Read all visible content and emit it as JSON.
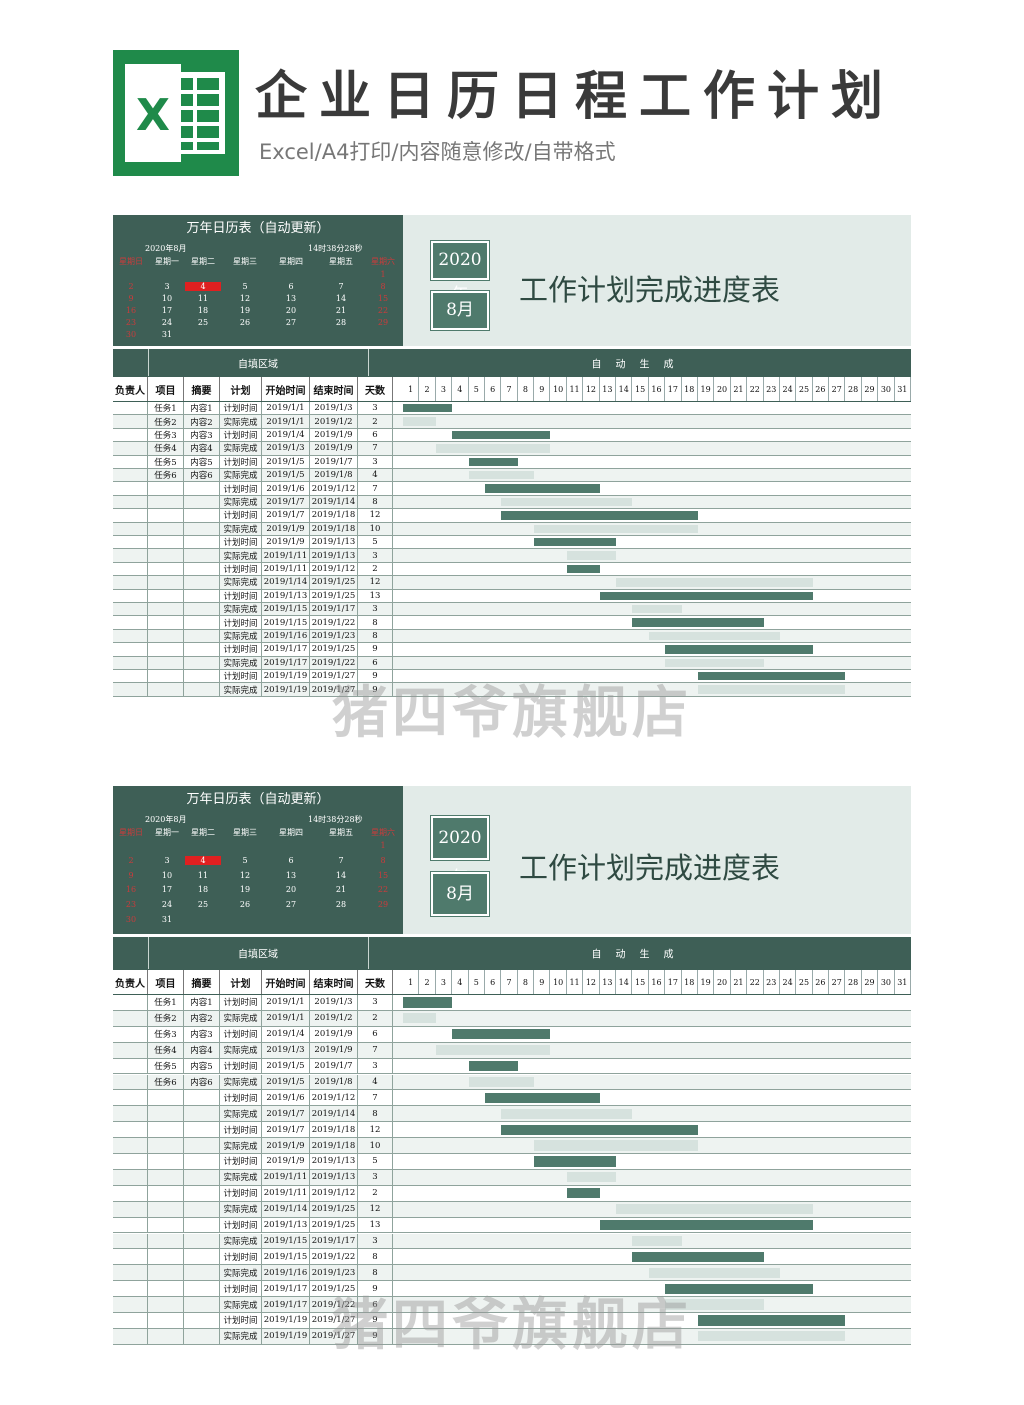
{
  "header": {
    "logo_letter": "X",
    "title": "企业日历日程工作计划",
    "subtitle": "Excel/A4打印/内容随意修改/自带格式"
  },
  "calendar": {
    "title": "万年日历表（自动更新）",
    "month_label": "2020年8月",
    "time_label": "14时38分28秒",
    "weekdays": [
      "星期日",
      "星期一",
      "星期二",
      "星期三",
      "星期四",
      "星期五",
      "星期六"
    ],
    "weeks": [
      [
        "",
        "",
        "",
        "",
        "",
        "",
        "1"
      ],
      [
        "2",
        "3",
        "4",
        "5",
        "6",
        "7",
        "8"
      ],
      [
        "9",
        "10",
        "11",
        "12",
        "13",
        "14",
        "15"
      ],
      [
        "16",
        "17",
        "18",
        "19",
        "20",
        "21",
        "22"
      ],
      [
        "23",
        "24",
        "25",
        "26",
        "27",
        "28",
        "29"
      ],
      [
        "30",
        "31",
        "",
        "",
        "",
        "",
        ""
      ]
    ],
    "today": "4"
  },
  "banner": {
    "year": "2020年",
    "month": "8月",
    "title": "工作计划完成进度表"
  },
  "band": {
    "left": "自填区域",
    "right": "自动生成"
  },
  "columns": [
    "负责人",
    "项目",
    "摘要",
    "计划",
    "开始时间",
    "结束时间",
    "天数"
  ],
  "days": [
    "1",
    "2",
    "3",
    "4",
    "5",
    "6",
    "7",
    "8",
    "9",
    "10",
    "11",
    "12",
    "13",
    "14",
    "15",
    "16",
    "17",
    "18",
    "19",
    "20",
    "21",
    "22",
    "23",
    "24",
    "25",
    "26",
    "27",
    "28",
    "29",
    "30",
    "31"
  ],
  "rows": [
    {
      "owner": "",
      "project": "任务1",
      "summary": "内容1",
      "plan": "计划时间",
      "start": "2019/1/1",
      "end": "2019/1/3",
      "days": "3",
      "type": "plan",
      "from": 1,
      "to": 3
    },
    {
      "owner": "",
      "project": "任务2",
      "summary": "内容2",
      "plan": "实际完成",
      "start": "2019/1/1",
      "end": "2019/1/2",
      "days": "2",
      "type": "actual",
      "from": 1,
      "to": 2
    },
    {
      "owner": "",
      "project": "任务3",
      "summary": "内容3",
      "plan": "计划时间",
      "start": "2019/1/4",
      "end": "2019/1/9",
      "days": "6",
      "type": "plan",
      "from": 4,
      "to": 9
    },
    {
      "owner": "",
      "project": "任务4",
      "summary": "内容4",
      "plan": "实际完成",
      "start": "2019/1/3",
      "end": "2019/1/9",
      "days": "7",
      "type": "actual",
      "from": 3,
      "to": 9
    },
    {
      "owner": "",
      "project": "任务5",
      "summary": "内容5",
      "plan": "计划时间",
      "start": "2019/1/5",
      "end": "2019/1/7",
      "days": "3",
      "type": "plan",
      "from": 5,
      "to": 7
    },
    {
      "owner": "",
      "project": "任务6",
      "summary": "内容6",
      "plan": "实际完成",
      "start": "2019/1/5",
      "end": "2019/1/8",
      "days": "4",
      "type": "actual",
      "from": 5,
      "to": 8
    },
    {
      "owner": "",
      "project": "",
      "summary": "",
      "plan": "计划时间",
      "start": "2019/1/6",
      "end": "2019/1/12",
      "days": "7",
      "type": "plan",
      "from": 6,
      "to": 12
    },
    {
      "owner": "",
      "project": "",
      "summary": "",
      "plan": "实际完成",
      "start": "2019/1/7",
      "end": "2019/1/14",
      "days": "8",
      "type": "actual",
      "from": 7,
      "to": 14
    },
    {
      "owner": "",
      "project": "",
      "summary": "",
      "plan": "计划时间",
      "start": "2019/1/7",
      "end": "2019/1/18",
      "days": "12",
      "type": "plan",
      "from": 7,
      "to": 18
    },
    {
      "owner": "",
      "project": "",
      "summary": "",
      "plan": "实际完成",
      "start": "2019/1/9",
      "end": "2019/1/18",
      "days": "10",
      "type": "actual",
      "from": 9,
      "to": 18
    },
    {
      "owner": "",
      "project": "",
      "summary": "",
      "plan": "计划时间",
      "start": "2019/1/9",
      "end": "2019/1/13",
      "days": "5",
      "type": "plan",
      "from": 9,
      "to": 13
    },
    {
      "owner": "",
      "project": "",
      "summary": "",
      "plan": "实际完成",
      "start": "2019/1/11",
      "end": "2019/1/13",
      "days": "3",
      "type": "actual",
      "from": 11,
      "to": 13
    },
    {
      "owner": "",
      "project": "",
      "summary": "",
      "plan": "计划时间",
      "start": "2019/1/11",
      "end": "2019/1/12",
      "days": "2",
      "type": "plan",
      "from": 11,
      "to": 12
    },
    {
      "owner": "",
      "project": "",
      "summary": "",
      "plan": "实际完成",
      "start": "2019/1/14",
      "end": "2019/1/25",
      "days": "12",
      "type": "actual",
      "from": 14,
      "to": 25
    },
    {
      "owner": "",
      "project": "",
      "summary": "",
      "plan": "计划时间",
      "start": "2019/1/13",
      "end": "2019/1/25",
      "days": "13",
      "type": "plan",
      "from": 13,
      "to": 25
    },
    {
      "owner": "",
      "project": "",
      "summary": "",
      "plan": "实际完成",
      "start": "2019/1/15",
      "end": "2019/1/17",
      "days": "3",
      "type": "actual",
      "from": 15,
      "to": 17
    },
    {
      "owner": "",
      "project": "",
      "summary": "",
      "plan": "计划时间",
      "start": "2019/1/15",
      "end": "2019/1/22",
      "days": "8",
      "type": "plan",
      "from": 15,
      "to": 22
    },
    {
      "owner": "",
      "project": "",
      "summary": "",
      "plan": "实际完成",
      "start": "2019/1/16",
      "end": "2019/1/23",
      "days": "8",
      "type": "actual",
      "from": 16,
      "to": 23
    },
    {
      "owner": "",
      "project": "",
      "summary": "",
      "plan": "计划时间",
      "start": "2019/1/17",
      "end": "2019/1/25",
      "days": "9",
      "type": "plan",
      "from": 17,
      "to": 25
    },
    {
      "owner": "",
      "project": "",
      "summary": "",
      "plan": "实际完成",
      "start": "2019/1/17",
      "end": "2019/1/22",
      "days": "6",
      "type": "actual",
      "from": 17,
      "to": 22
    },
    {
      "owner": "",
      "project": "",
      "summary": "",
      "plan": "计划时间",
      "start": "2019/1/19",
      "end": "2019/1/27",
      "days": "9",
      "type": "plan",
      "from": 19,
      "to": 27
    },
    {
      "owner": "",
      "project": "",
      "summary": "",
      "plan": "实际完成",
      "start": "2019/1/19",
      "end": "2019/1/27",
      "days": "9",
      "type": "actual",
      "from": 19,
      "to": 27
    }
  ],
  "watermark": "猪四爷旗舰店",
  "colors": {
    "dark": "#3e5f56",
    "plan_bar": "#4f7a6c",
    "actual_bar": "#d6e2de",
    "today": "#e02020",
    "banner_bg": "#e2ebe8"
  }
}
